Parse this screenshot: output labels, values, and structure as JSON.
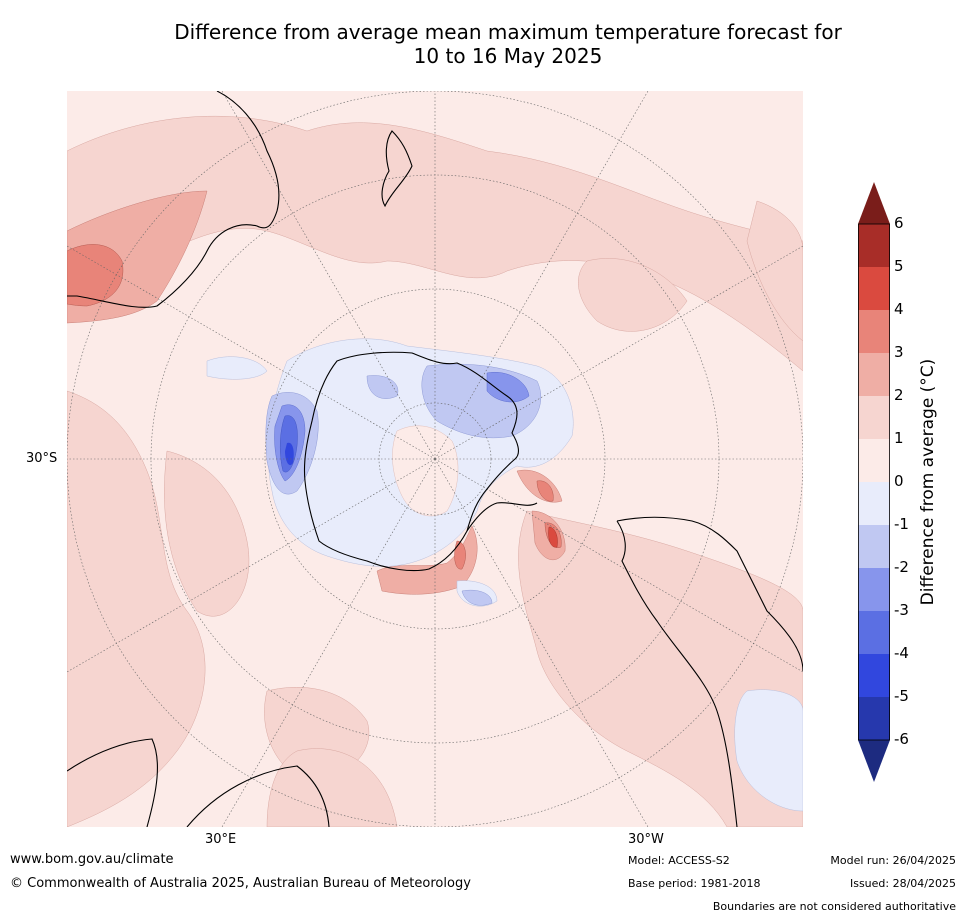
{
  "title": {
    "line1": "Difference from average mean maximum temperature forecast for",
    "line2": "10 to 16 May 2025"
  },
  "map": {
    "projection": "south-polar-stereographic",
    "lat_label": "30°S",
    "lon_labels": [
      "30°E",
      "30°W"
    ],
    "colors": {
      "land": "#000000",
      "graticule": "#666666"
    }
  },
  "colorbar": {
    "label": "Difference from average (°C)",
    "ticks": [
      "6",
      "5",
      "4",
      "3",
      "2",
      "1",
      "0",
      "-1",
      "-2",
      "-3",
      "-4",
      "-5",
      "-6"
    ],
    "bins": [
      {
        "range": "5 to 6",
        "color": "#a82d28"
      },
      {
        "range": "4 to 5",
        "color": "#da4a3f"
      },
      {
        "range": "3 to 4",
        "color": "#e88479"
      },
      {
        "range": "2 to 3",
        "color": "#efaea5"
      },
      {
        "range": "1 to 2",
        "color": "#f6d5d0"
      },
      {
        "range": "0 to 1",
        "color": "#fcebe8"
      },
      {
        "range": "-1 to 0",
        "color": "#e8ecfb"
      },
      {
        "range": "-2 to -1",
        "color": "#c0c8f2"
      },
      {
        "range": "-3 to -2",
        "color": "#8795ec"
      },
      {
        "range": "-4 to -3",
        "color": "#5b6fe3"
      },
      {
        "range": "-5 to -4",
        "color": "#3147de"
      },
      {
        "range": "-6 to -5",
        "color": "#2638ad"
      }
    ],
    "extend_max_color": "#7a1d1a",
    "extend_min_color": "#1d2b80"
  },
  "footer": {
    "website": "www.bom.gov.au/climate",
    "copyright": "© Commonwealth of Australia 2025, Australian Bureau of Meteorology",
    "model": "Model: ACCESS-S2",
    "base_period": "Base period: 1981-2018",
    "model_run": "Model run: 26/04/2025",
    "issued": "Issued: 28/04/2025",
    "disclaimer": "Boundaries are not considered authoritative"
  }
}
